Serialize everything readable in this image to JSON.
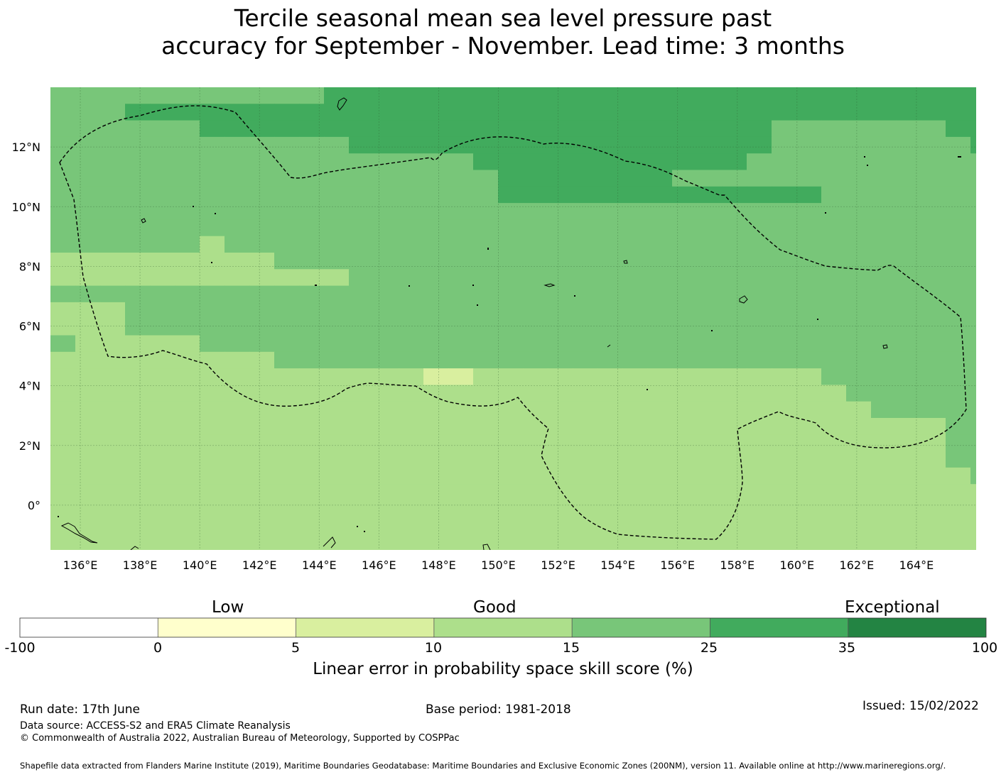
{
  "title": {
    "line1": "Tercile seasonal mean sea level pressure past",
    "line2": "accuracy for September - November. Lead time: 3 months"
  },
  "map": {
    "lon_ticks": [
      "136°E",
      "138°E",
      "140°E",
      "142°E",
      "144°E",
      "146°E",
      "148°E",
      "150°E",
      "152°E",
      "154°E",
      "156°E",
      "158°E",
      "160°E",
      "162°E",
      "164°E"
    ],
    "lat_ticks": [
      "12°N",
      "10°N",
      "8°N",
      "6°N",
      "4°N",
      "2°N",
      "0°"
    ],
    "lon_range": [
      135,
      166
    ],
    "lat_range": [
      -1.5,
      14
    ],
    "grid": true,
    "colors": {
      "c1": "#d9ef9f",
      "c2": "#addf8b",
      "c3": "#78c679",
      "c4": "#41ab5d"
    },
    "cell_rows": [
      "3333333333344444444444444444444444444444",
      "3334444444444444444444444444444444444444",
      "3333334444444444444444444444433333334444",
      "3333333333334444444444444444433333333443",
      "3333333333333333344444444444333333333333",
      "3333333333333333334444444333333333333334",
      "3333333333333333334444444444444333333333",
      "3333333333333333333333333333333333333333",
      "3333333333333333333333333333333333333333",
      "3333332333333333333333333333333333333333",
      "2222222223333333333333333333333333333333",
      "2222222222223333333333333333333333333333",
      "3333333333333333333333333333333333333333",
      "2223333333333333333333333333333333333333",
      "2223333333333333333333333333333333333333",
      "3222223333333333333333333333333333333333",
      "2222222223333333333333333333333333333333",
      "2222222222222221122222222222222333333333",
      "2222222222222222222222222222222233333333",
      "2222222222222222222222222222222223333333",
      "2222222222222222222222222222222222223333",
      "2222222222222222222222222222222222223333",
      "2222222222222222222222222222222222223333",
      "2222222222222222222222222222222222222333",
      "2222222222222222222222222222222222222233",
      "2222222222222222222222222222222222222223",
      "2222222222222222222222222222222222222223",
      "2222222222222222222222222222222222222222"
    ]
  },
  "colorbar": {
    "categories": {
      "low": "Low",
      "good": "Good",
      "exceptional": "Exceptional"
    },
    "bounds": [
      "-100",
      "0",
      "5",
      "10",
      "15",
      "25",
      "35",
      "100"
    ],
    "colors": [
      "#ffffff",
      "#ffffcc",
      "#d9ef9f",
      "#addf8b",
      "#78c679",
      "#41ab5d",
      "#238443"
    ],
    "title": "Linear error in probability space skill score (%)"
  },
  "footer": {
    "run_date": "Run date: 17th June",
    "base_period": "Base period: 1981-2018",
    "issued": "Issued: 15/02/2022",
    "data_source": "Data source: ACCESS-S2 and ERA5 Climate Reanalysis",
    "copyright": "© Commonwealth of Australia 2022, Australian Bureau of Meteorology, Supported by COSPPac",
    "shapefile": "Shapefile data extracted from Flanders Marine Institute (2019), Maritime Boundaries Geodatabase: Maritime Boundaries and Exclusive Economic Zones (200NM), version 11. Available online at http://www.marineregions.org/."
  }
}
